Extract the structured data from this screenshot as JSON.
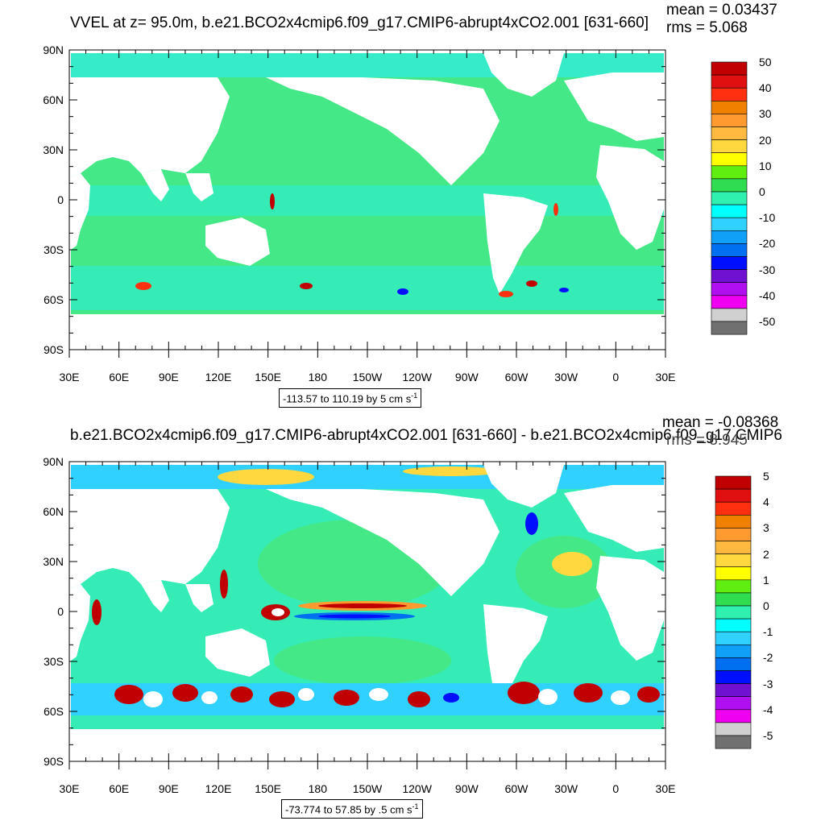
{
  "panels": [
    {
      "title": "VVEL at z=  95.0m, b.e21.BCO2x4cmip6.f09_g17.CMIP6-abrupt4xCO2.001 [631-660]",
      "mean_label": "mean = 0.03437",
      "rms_label": "rms = 5.068",
      "info_text": "-113.57 to 110.19 by 5 cm s",
      "info_sup": "-1",
      "colorbar_labels": [
        "50",
        "40",
        "30",
        "20",
        "10",
        "0",
        "-10",
        "-20",
        "-30",
        "-40",
        "-50"
      ]
    },
    {
      "title": "b.e21.BCO2x4cmip6.f09_g17.CMIP6-abrupt4xCO2.001 [631-660] - b.e21.BCO2x4cmip6.f09_g17.CMIP6",
      "mean_label": "mean = -0.08368",
      "rms_label": "rms = 8.945",
      "info_text": "-73.774 to 57.85 by .5 cm s",
      "info_sup": "-1",
      "colorbar_labels": [
        "5",
        "4",
        "3",
        "2",
        "1",
        "0",
        "-1",
        "-2",
        "-3",
        "-4",
        "-5"
      ]
    }
  ],
  "lat_labels": [
    "90N",
    "60N",
    "30N",
    "0",
    "30S",
    "60S",
    "90S"
  ],
  "lon_labels": [
    "30E",
    "60E",
    "90E",
    "120E",
    "150E",
    "180",
    "150W",
    "120W",
    "90W",
    "60W",
    "30W",
    "0",
    "30E"
  ],
  "colorbar_colors": [
    "#c00000",
    "#e01010",
    "#ff3010",
    "#f08000",
    "#ff9a30",
    "#ffb840",
    "#ffd840",
    "#ffff00",
    "#60ee10",
    "#30dd50",
    "#30f0b0",
    "#00ffff",
    "#30d0ff",
    "#10a0f8",
    "#0070f0",
    "#0010ff",
    "#7010d0",
    "#b010f0",
    "#f000f0",
    "#d0d0d0",
    "#707070"
  ],
  "map_colors": {
    "ocean_bg": "#44e886",
    "equatorial": "#35ecb6",
    "southern": "#44e886",
    "land": "#ffffff"
  }
}
